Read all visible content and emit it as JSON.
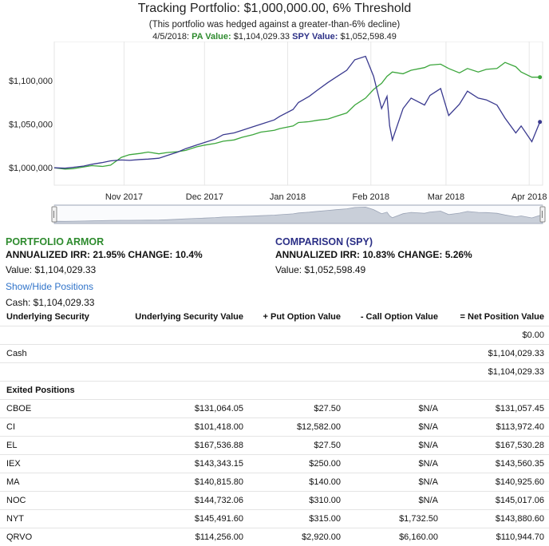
{
  "header": {
    "title": "Tracking Portfolio: $1,000,000.00, 6% Threshold",
    "subtitle": "(This portfolio was hedged against a greater-than-6% decline)",
    "date": "4/5/2018:",
    "pa_label": "PA Value:",
    "pa_value": "$1,104,029.33",
    "spy_label": "SPY Value:",
    "spy_value": "$1,052,598.49"
  },
  "colors": {
    "pa": "#3ca63c",
    "spy": "#3a3a8f",
    "grid": "#e6e6e6",
    "navigator": "#c9cfd9"
  },
  "chart_data": {
    "type": "line",
    "x_tick_labels": [
      "Nov 2017",
      "Dec 2017",
      "Jan 2018",
      "Feb 2018",
      "Mar 2018",
      "Apr 2018"
    ],
    "y_tick_labels": [
      "$1,100,000",
      "$1,050,000",
      "$1,000,000"
    ],
    "y_ticks": [
      1100000,
      1050000,
      1000000
    ],
    "ylim": [
      980000,
      1145000
    ],
    "x_range": [
      "2017-10-06",
      "2018-04-06"
    ],
    "legend": "none",
    "series": [
      {
        "key": "PA",
        "color": "#3ca63c",
        "points": [
          [
            "2017-10-06",
            1000000
          ],
          [
            "2017-10-10",
            998500
          ],
          [
            "2017-10-13",
            999000
          ],
          [
            "2017-10-17",
            1001000
          ],
          [
            "2017-10-20",
            1002500
          ],
          [
            "2017-10-24",
            1001500
          ],
          [
            "2017-10-27",
            1003000
          ],
          [
            "2017-10-31",
            1012000
          ],
          [
            "2017-11-03",
            1015000
          ],
          [
            "2017-11-07",
            1016500
          ],
          [
            "2017-11-10",
            1018000
          ],
          [
            "2017-11-14",
            1016000
          ],
          [
            "2017-11-17",
            1017500
          ],
          [
            "2017-11-21",
            1018500
          ],
          [
            "2017-11-24",
            1020000
          ],
          [
            "2017-11-28",
            1024000
          ],
          [
            "2017-12-01",
            1026000
          ],
          [
            "2017-12-05",
            1028000
          ],
          [
            "2017-12-08",
            1030500
          ],
          [
            "2017-12-12",
            1032000
          ],
          [
            "2017-12-15",
            1035000
          ],
          [
            "2017-12-19",
            1038000
          ],
          [
            "2017-12-22",
            1041000
          ],
          [
            "2017-12-27",
            1043000
          ],
          [
            "2017-12-29",
            1045000
          ],
          [
            "2018-01-03",
            1048000
          ],
          [
            "2018-01-05",
            1052000
          ],
          [
            "2018-01-09",
            1053000
          ],
          [
            "2018-01-12",
            1054500
          ],
          [
            "2018-01-16",
            1056000
          ],
          [
            "2018-01-19",
            1059000
          ],
          [
            "2018-01-23",
            1063000
          ],
          [
            "2018-01-26",
            1072000
          ],
          [
            "2018-01-30",
            1080000
          ],
          [
            "2018-02-02",
            1090000
          ],
          [
            "2018-02-05",
            1097000
          ],
          [
            "2018-02-07",
            1105000
          ],
          [
            "2018-02-09",
            1110000
          ],
          [
            "2018-02-13",
            1108000
          ],
          [
            "2018-02-16",
            1112000
          ],
          [
            "2018-02-21",
            1115000
          ],
          [
            "2018-02-23",
            1118000
          ],
          [
            "2018-02-27",
            1119000
          ],
          [
            "2018-03-02",
            1114000
          ],
          [
            "2018-03-06",
            1109000
          ],
          [
            "2018-03-09",
            1114000
          ],
          [
            "2018-03-13",
            1110000
          ],
          [
            "2018-03-16",
            1113000
          ],
          [
            "2018-03-20",
            1114000
          ],
          [
            "2018-03-23",
            1121000
          ],
          [
            "2018-03-27",
            1116000
          ],
          [
            "2018-03-29",
            1110000
          ],
          [
            "2018-04-02",
            1104000
          ],
          [
            "2018-04-05",
            1104029
          ]
        ]
      },
      {
        "key": "SPY",
        "color": "#3a3a8f",
        "points": [
          [
            "2017-10-06",
            1000000
          ],
          [
            "2017-10-10",
            999500
          ],
          [
            "2017-10-13",
            1000500
          ],
          [
            "2017-10-17",
            1002000
          ],
          [
            "2017-10-20",
            1004000
          ],
          [
            "2017-10-24",
            1006000
          ],
          [
            "2017-10-27",
            1008000
          ],
          [
            "2017-10-31",
            1009000
          ],
          [
            "2017-11-03",
            1008500
          ],
          [
            "2017-11-07",
            1009500
          ],
          [
            "2017-11-10",
            1010000
          ],
          [
            "2017-11-14",
            1011000
          ],
          [
            "2017-11-17",
            1014000
          ],
          [
            "2017-11-21",
            1018000
          ],
          [
            "2017-11-24",
            1022000
          ],
          [
            "2017-11-28",
            1026000
          ],
          [
            "2017-12-01",
            1029000
          ],
          [
            "2017-12-05",
            1033000
          ],
          [
            "2017-12-08",
            1038000
          ],
          [
            "2017-12-12",
            1040000
          ],
          [
            "2017-12-15",
            1043000
          ],
          [
            "2017-12-19",
            1047000
          ],
          [
            "2017-12-22",
            1050000
          ],
          [
            "2017-12-27",
            1055000
          ],
          [
            "2017-12-29",
            1059000
          ],
          [
            "2018-01-03",
            1067000
          ],
          [
            "2018-01-05",
            1075000
          ],
          [
            "2018-01-09",
            1082000
          ],
          [
            "2018-01-12",
            1089000
          ],
          [
            "2018-01-16",
            1098000
          ],
          [
            "2018-01-19",
            1104000
          ],
          [
            "2018-01-23",
            1112000
          ],
          [
            "2018-01-26",
            1124000
          ],
          [
            "2018-01-30",
            1128000
          ],
          [
            "2018-02-02",
            1105000
          ],
          [
            "2018-02-05",
            1068000
          ],
          [
            "2018-02-07",
            1082000
          ],
          [
            "2018-02-08",
            1048000
          ],
          [
            "2018-02-09",
            1032000
          ],
          [
            "2018-02-13",
            1068000
          ],
          [
            "2018-02-16",
            1080000
          ],
          [
            "2018-02-21",
            1072000
          ],
          [
            "2018-02-23",
            1083000
          ],
          [
            "2018-02-27",
            1091000
          ],
          [
            "2018-03-02",
            1060000
          ],
          [
            "2018-03-06",
            1073000
          ],
          [
            "2018-03-09",
            1088000
          ],
          [
            "2018-03-13",
            1080000
          ],
          [
            "2018-03-16",
            1078000
          ],
          [
            "2018-03-20",
            1072000
          ],
          [
            "2018-03-23",
            1057000
          ],
          [
            "2018-03-27",
            1040000
          ],
          [
            "2018-03-29",
            1048000
          ],
          [
            "2018-04-02",
            1030000
          ],
          [
            "2018-04-05",
            1052598
          ]
        ]
      }
    ]
  },
  "summary": {
    "pa": {
      "title": "PORTFOLIO ARMOR",
      "irr": "ANNUALIZED IRR: 21.95% CHANGE: 10.4%",
      "value": "Value: $1,104,029.33",
      "toggle": "Show/Hide Positions",
      "cash": "Cash: $1,104,029.33"
    },
    "spy": {
      "title": "COMPARISON (SPY)",
      "irr": "ANNUALIZED IRR: 10.83% CHANGE: 5.26%",
      "value": "Value: $1,052,598.49"
    }
  },
  "table": {
    "headers": [
      "Underlying Security",
      "Underlying Security Value",
      "+ Put Option Value",
      "- Call Option Value",
      "= Net Position Value"
    ],
    "rows": [
      [
        "",
        "",
        "",
        "",
        "$0.00"
      ],
      [
        "Cash",
        "",
        "",
        "",
        "$1,104,029.33"
      ],
      [
        "",
        "",
        "",
        "",
        "$1,104,029.33"
      ]
    ],
    "exited_label": "Exited Positions",
    "exited_rows": [
      [
        "CBOE",
        "$131,064.05",
        "$27.50",
        "$N/A",
        "$131,057.45"
      ],
      [
        "CI",
        "$101,418.00",
        "$12,582.00",
        "$N/A",
        "$113,972.40"
      ],
      [
        "EL",
        "$167,536.88",
        "$27.50",
        "$N/A",
        "$167,530.28"
      ],
      [
        "IEX",
        "$143,343.15",
        "$250.00",
        "$N/A",
        "$143,560.35"
      ],
      [
        "MA",
        "$140,815.80",
        "$140.00",
        "$N/A",
        "$140,925.60"
      ],
      [
        "NOC",
        "$144,732.06",
        "$310.00",
        "$N/A",
        "$145,017.06"
      ],
      [
        "NYT",
        "$145,491.60",
        "$315.00",
        "$1,732.50",
        "$143,880.60"
      ],
      [
        "QRVO",
        "$114,256.00",
        "$2,920.00",
        "$6,160.00",
        "$110,944.70"
      ]
    ]
  }
}
